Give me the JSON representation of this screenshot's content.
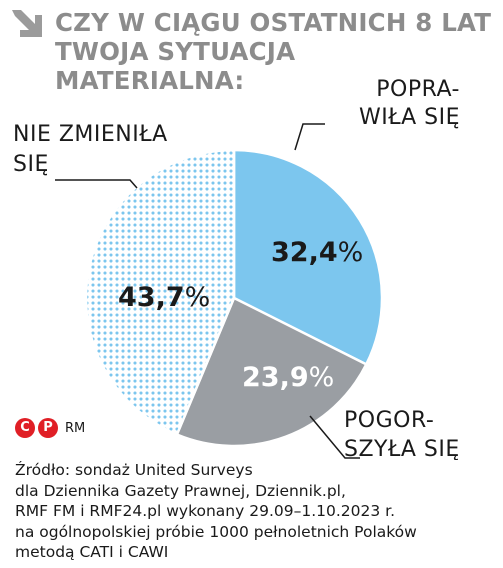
{
  "chart_data": {
    "type": "pie",
    "title_lines": [
      "CZY W CIĄGU OSTATNICH 8 LAT",
      "TWOJA SYTUACJA",
      "MATERIALNA:"
    ],
    "slices": [
      {
        "label_lines": [
          "POPRA-",
          "WIŁA SIĘ"
        ],
        "value": 32.4,
        "display_num": "32,4",
        "display_pct": "%",
        "color": "#7cc6ee",
        "pattern": "solid"
      },
      {
        "label_lines": [
          "POGOR-",
          "SZYŁA SIĘ"
        ],
        "value": 23.9,
        "display_num": "23,9",
        "display_pct": "%",
        "color": "#9a9ea3",
        "pattern": "solid"
      },
      {
        "label_lines": [
          "NIE ZMIENIŁA",
          "SIĘ"
        ],
        "value": 43.7,
        "display_num": "43,7",
        "display_pct": "%",
        "color": "#7cc6ee",
        "pattern": "dots"
      }
    ]
  },
  "colors": {
    "title": "#8c8c8c",
    "credit_red": "#e01f26",
    "leader": "#1a1a1a"
  },
  "title_icon": "arrow-down-right-icon",
  "credits": {
    "c_icon": "C",
    "p_icon": "P",
    "text": "RM"
  },
  "source_lines": [
    "Źródło: sondaż United Surveys",
    "dla Dziennika Gazety Prawnej, Dziennik.pl,",
    "RMF FM i RMF24.pl wykonany 29.09–1.10.2023 r.",
    "na ogólnopolskiej próbie 1000 pełnoletnich Polaków",
    "metodą CATI i CAWI"
  ]
}
